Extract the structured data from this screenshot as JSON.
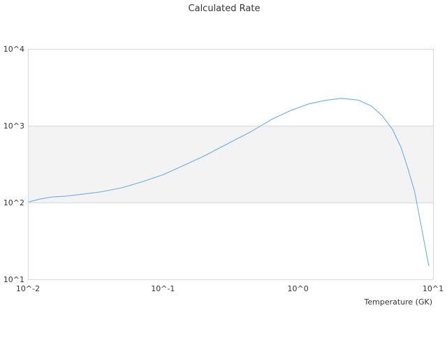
{
  "chart_data": {
    "type": "line",
    "title": "Calculated Rate",
    "xlabel": "Temperature (GK)",
    "ylabel": "",
    "x_scale": "log",
    "y_scale": "log",
    "xlim": [
      0.01,
      10
    ],
    "ylim": [
      10,
      10000
    ],
    "grid": "alternating horizontal bands",
    "legend": "none",
    "x_ticks": [
      {
        "value": 0.01,
        "label": "10^-2"
      },
      {
        "value": 0.1,
        "label": "10^-1"
      },
      {
        "value": 1,
        "label": "10^0"
      },
      {
        "value": 10,
        "label": "10^1"
      }
    ],
    "y_ticks": [
      {
        "value": 10,
        "label": "10^1"
      },
      {
        "value": 100,
        "label": "10^2"
      },
      {
        "value": 1000,
        "label": "10^3"
      },
      {
        "value": 10000,
        "label": "10^4"
      }
    ],
    "series": [
      {
        "color": "#6aaee8",
        "points": [
          [
            0.0102,
            102
          ],
          [
            0.012,
            110
          ],
          [
            0.015,
            118
          ],
          [
            0.019,
            121
          ],
          [
            0.025,
            128
          ],
          [
            0.035,
            138
          ],
          [
            0.05,
            156
          ],
          [
            0.07,
            186
          ],
          [
            0.1,
            230
          ],
          [
            0.14,
            300
          ],
          [
            0.2,
            400
          ],
          [
            0.3,
            580
          ],
          [
            0.45,
            840
          ],
          [
            0.65,
            1230
          ],
          [
            0.9,
            1600
          ],
          [
            1.2,
            1920
          ],
          [
            1.6,
            2140
          ],
          [
            2.1,
            2270
          ],
          [
            2.8,
            2150
          ],
          [
            3.5,
            1800
          ],
          [
            4.2,
            1350
          ],
          [
            5.0,
            900
          ],
          [
            5.8,
            520
          ],
          [
            6.5,
            280
          ],
          [
            7.3,
            140
          ],
          [
            8.2,
            48
          ],
          [
            9.3,
            15
          ]
        ]
      }
    ],
    "colors": {
      "line": "#6aaee8",
      "band": "#f3f3f3",
      "frame": "#d9d9d9"
    }
  }
}
